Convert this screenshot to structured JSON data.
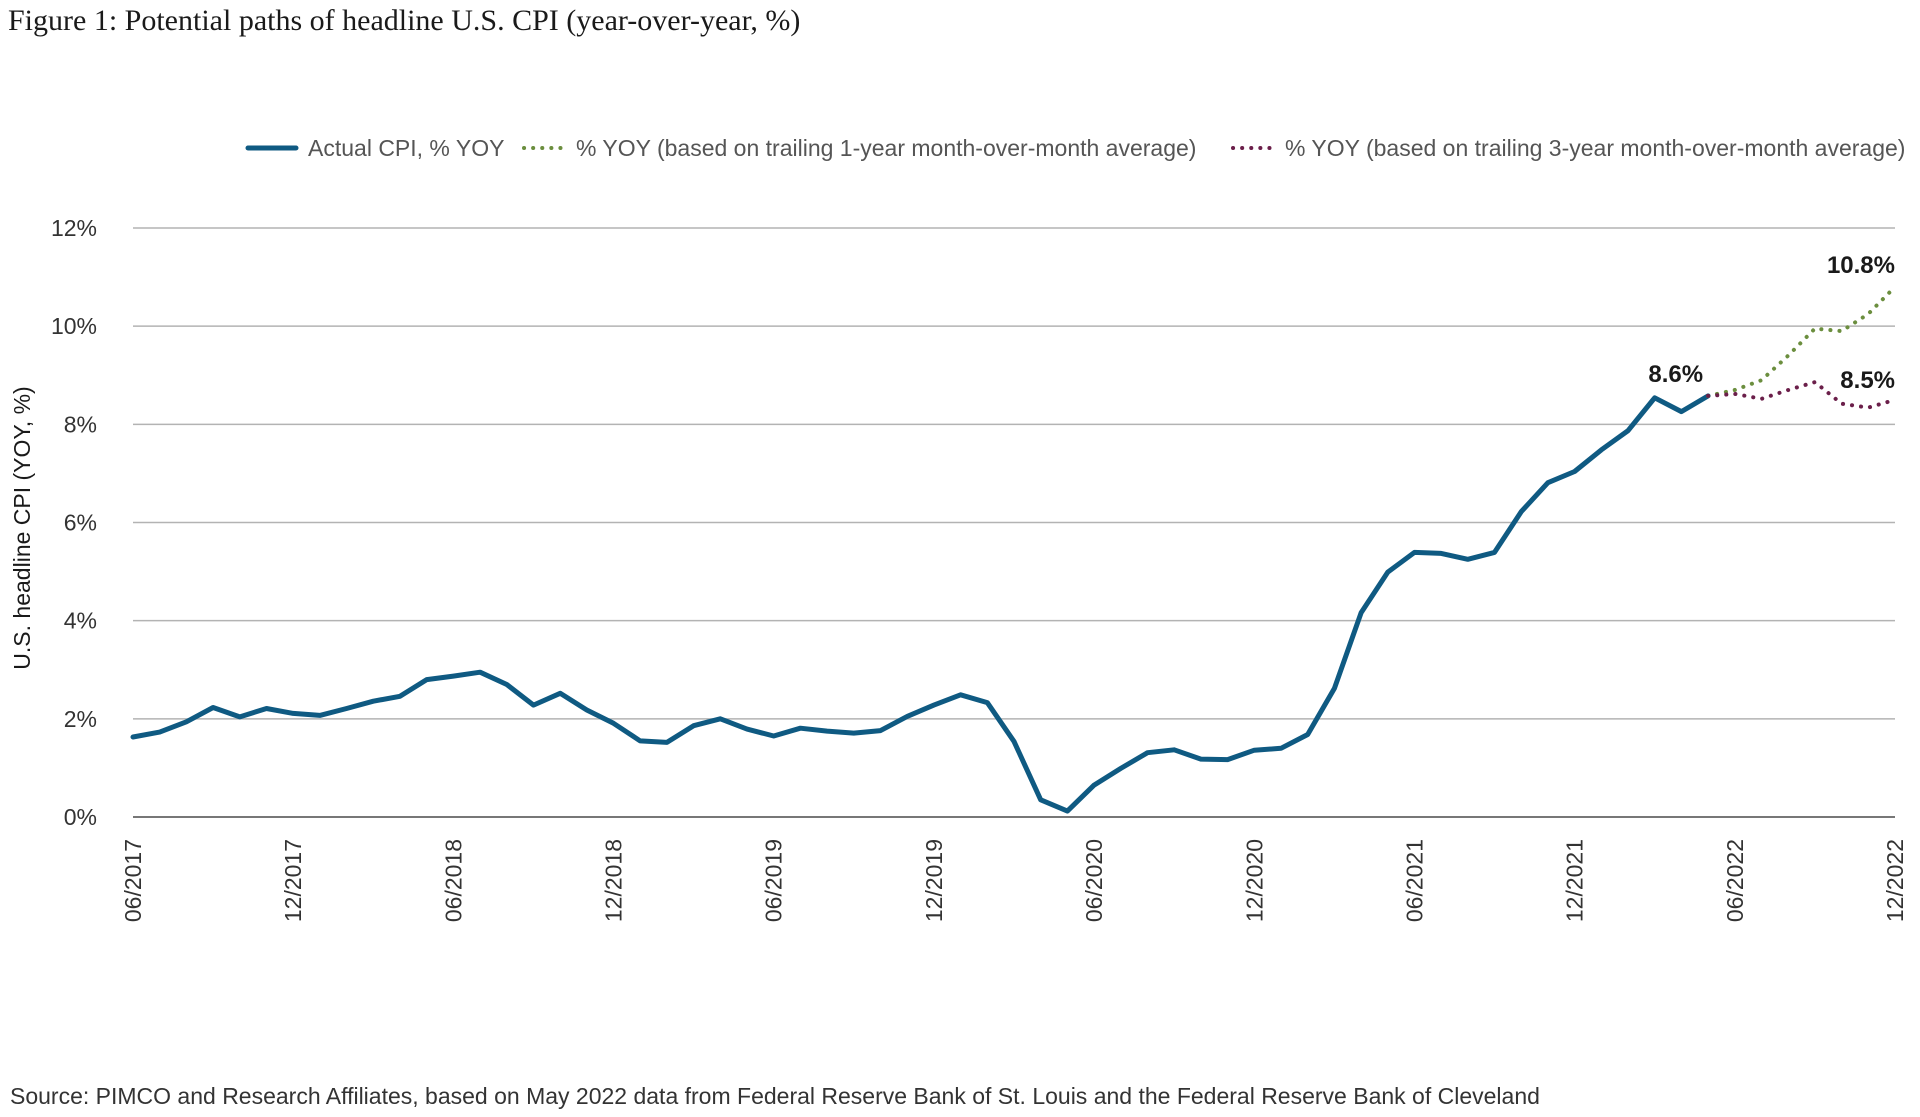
{
  "chart_data": {
    "type": "line",
    "title": "Figure 1: Potential paths of headline U.S. CPI (year-over-year, %)",
    "ylabel": "U.S. headline CPI (YOY, %)",
    "xlabel": "",
    "ylim": [
      0,
      12
    ],
    "yticks": [
      0,
      2,
      4,
      6,
      8,
      10,
      12
    ],
    "ytick_labels": [
      "0%",
      "2%",
      "4%",
      "6%",
      "8%",
      "10%",
      "12%"
    ],
    "x_start": "06/2017",
    "x_end": "12/2022",
    "xtick_labels": [
      "06/2017",
      "12/2017",
      "06/2018",
      "12/2018",
      "06/2019",
      "12/2019",
      "06/2020",
      "12/2020",
      "06/2021",
      "12/2021",
      "06/2022",
      "12/2022"
    ],
    "xtick_month_index": [
      0,
      6,
      12,
      18,
      24,
      30,
      36,
      42,
      48,
      54,
      60,
      66
    ],
    "grid": true,
    "legend_position": "top",
    "series": [
      {
        "name": "Actual CPI, % YOY",
        "color": "#0f5a82",
        "style": "solid",
        "start_index": 0,
        "values": [
          1.63,
          1.73,
          1.94,
          2.23,
          2.04,
          2.21,
          2.11,
          2.07,
          2.21,
          2.36,
          2.46,
          2.8,
          2.87,
          2.95,
          2.7,
          2.28,
          2.52,
          2.18,
          1.91,
          1.55,
          1.52,
          1.86,
          2.0,
          1.79,
          1.65,
          1.81,
          1.75,
          1.71,
          1.76,
          2.05,
          2.28,
          2.49,
          2.33,
          1.54,
          0.35,
          0.12,
          0.65,
          0.99,
          1.31,
          1.37,
          1.18,
          1.17,
          1.36,
          1.4,
          1.68,
          2.62,
          4.16,
          4.99,
          5.39,
          5.37,
          5.25,
          5.39,
          6.22,
          6.81,
          7.04,
          7.48,
          7.87,
          8.54,
          8.26,
          8.58
        ]
      },
      {
        "name": "% YOY (based on trailing 1-year month-over-month average)",
        "color": "#6b8e3e",
        "style": "dotted",
        "start_index": 59,
        "values": [
          8.58,
          8.7,
          8.9,
          9.4,
          9.95,
          9.9,
          10.25,
          10.8
        ]
      },
      {
        "name": "% YOY (based on trailing 3-year month-over-month average)",
        "color": "#6b1f4a",
        "style": "dotted",
        "start_index": 59,
        "values": [
          8.58,
          8.62,
          8.52,
          8.7,
          8.86,
          8.42,
          8.34,
          8.5
        ]
      }
    ],
    "annotations": [
      {
        "text": "8.6%",
        "month_index": 59,
        "value": 8.58
      },
      {
        "text": "10.8%",
        "month_index": 66,
        "value": 10.8
      },
      {
        "text": "8.5%",
        "month_index": 66,
        "value": 8.5
      }
    ]
  },
  "source": "Source: PIMCO and Research Affiliates, based on May 2022 data from Federal Reserve Bank of St. Louis and the Federal Reserve Bank of Cleveland"
}
